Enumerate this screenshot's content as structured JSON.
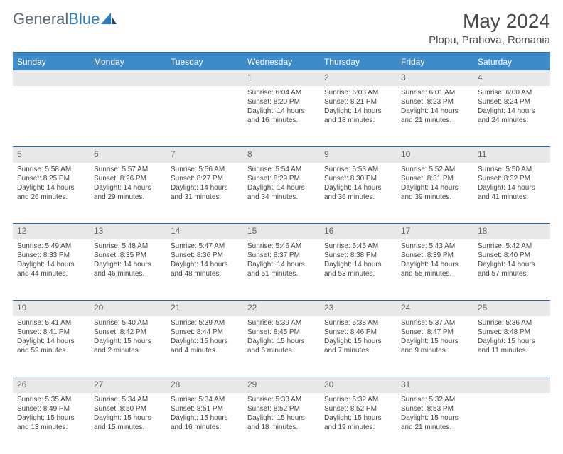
{
  "brand": {
    "part1": "General",
    "part2": "Blue"
  },
  "title": "May 2024",
  "location": "Plopu, Prahova, Romania",
  "colors": {
    "header_bg": "#3d8ac9",
    "rule": "#2d6aa3",
    "daynum_bg": "#e8e8e8",
    "text": "#444444"
  },
  "dow": [
    "Sunday",
    "Monday",
    "Tuesday",
    "Wednesday",
    "Thursday",
    "Friday",
    "Saturday"
  ],
  "weeks": [
    [
      null,
      null,
      null,
      {
        "n": "1",
        "sr": "6:04 AM",
        "ss": "8:20 PM",
        "dl": "14 hours and 16 minutes."
      },
      {
        "n": "2",
        "sr": "6:03 AM",
        "ss": "8:21 PM",
        "dl": "14 hours and 18 minutes."
      },
      {
        "n": "3",
        "sr": "6:01 AM",
        "ss": "8:23 PM",
        "dl": "14 hours and 21 minutes."
      },
      {
        "n": "4",
        "sr": "6:00 AM",
        "ss": "8:24 PM",
        "dl": "14 hours and 24 minutes."
      }
    ],
    [
      {
        "n": "5",
        "sr": "5:58 AM",
        "ss": "8:25 PM",
        "dl": "14 hours and 26 minutes."
      },
      {
        "n": "6",
        "sr": "5:57 AM",
        "ss": "8:26 PM",
        "dl": "14 hours and 29 minutes."
      },
      {
        "n": "7",
        "sr": "5:56 AM",
        "ss": "8:27 PM",
        "dl": "14 hours and 31 minutes."
      },
      {
        "n": "8",
        "sr": "5:54 AM",
        "ss": "8:29 PM",
        "dl": "14 hours and 34 minutes."
      },
      {
        "n": "9",
        "sr": "5:53 AM",
        "ss": "8:30 PM",
        "dl": "14 hours and 36 minutes."
      },
      {
        "n": "10",
        "sr": "5:52 AM",
        "ss": "8:31 PM",
        "dl": "14 hours and 39 minutes."
      },
      {
        "n": "11",
        "sr": "5:50 AM",
        "ss": "8:32 PM",
        "dl": "14 hours and 41 minutes."
      }
    ],
    [
      {
        "n": "12",
        "sr": "5:49 AM",
        "ss": "8:33 PM",
        "dl": "14 hours and 44 minutes."
      },
      {
        "n": "13",
        "sr": "5:48 AM",
        "ss": "8:35 PM",
        "dl": "14 hours and 46 minutes."
      },
      {
        "n": "14",
        "sr": "5:47 AM",
        "ss": "8:36 PM",
        "dl": "14 hours and 48 minutes."
      },
      {
        "n": "15",
        "sr": "5:46 AM",
        "ss": "8:37 PM",
        "dl": "14 hours and 51 minutes."
      },
      {
        "n": "16",
        "sr": "5:45 AM",
        "ss": "8:38 PM",
        "dl": "14 hours and 53 minutes."
      },
      {
        "n": "17",
        "sr": "5:43 AM",
        "ss": "8:39 PM",
        "dl": "14 hours and 55 minutes."
      },
      {
        "n": "18",
        "sr": "5:42 AM",
        "ss": "8:40 PM",
        "dl": "14 hours and 57 minutes."
      }
    ],
    [
      {
        "n": "19",
        "sr": "5:41 AM",
        "ss": "8:41 PM",
        "dl": "14 hours and 59 minutes."
      },
      {
        "n": "20",
        "sr": "5:40 AM",
        "ss": "8:42 PM",
        "dl": "15 hours and 2 minutes."
      },
      {
        "n": "21",
        "sr": "5:39 AM",
        "ss": "8:44 PM",
        "dl": "15 hours and 4 minutes."
      },
      {
        "n": "22",
        "sr": "5:39 AM",
        "ss": "8:45 PM",
        "dl": "15 hours and 6 minutes."
      },
      {
        "n": "23",
        "sr": "5:38 AM",
        "ss": "8:46 PM",
        "dl": "15 hours and 7 minutes."
      },
      {
        "n": "24",
        "sr": "5:37 AM",
        "ss": "8:47 PM",
        "dl": "15 hours and 9 minutes."
      },
      {
        "n": "25",
        "sr": "5:36 AM",
        "ss": "8:48 PM",
        "dl": "15 hours and 11 minutes."
      }
    ],
    [
      {
        "n": "26",
        "sr": "5:35 AM",
        "ss": "8:49 PM",
        "dl": "15 hours and 13 minutes."
      },
      {
        "n": "27",
        "sr": "5:34 AM",
        "ss": "8:50 PM",
        "dl": "15 hours and 15 minutes."
      },
      {
        "n": "28",
        "sr": "5:34 AM",
        "ss": "8:51 PM",
        "dl": "15 hours and 16 minutes."
      },
      {
        "n": "29",
        "sr": "5:33 AM",
        "ss": "8:52 PM",
        "dl": "15 hours and 18 minutes."
      },
      {
        "n": "30",
        "sr": "5:32 AM",
        "ss": "8:52 PM",
        "dl": "15 hours and 19 minutes."
      },
      {
        "n": "31",
        "sr": "5:32 AM",
        "ss": "8:53 PM",
        "dl": "15 hours and 21 minutes."
      },
      null
    ]
  ],
  "labels": {
    "sunrise": "Sunrise:",
    "sunset": "Sunset:",
    "daylight": "Daylight:"
  }
}
